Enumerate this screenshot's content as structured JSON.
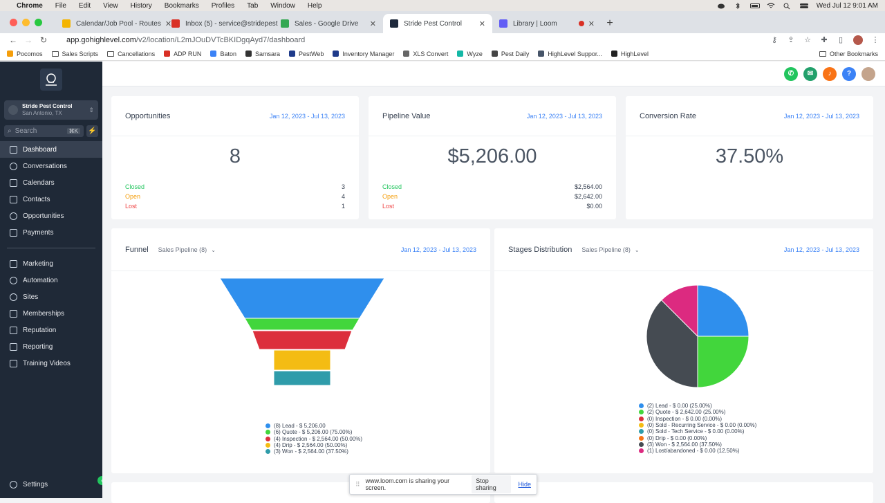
{
  "menubar": {
    "app": "Chrome",
    "items": [
      "File",
      "Edit",
      "View",
      "History",
      "Bookmarks",
      "Profiles",
      "Tab",
      "Window",
      "Help"
    ],
    "clock": "Wed Jul 12  9:01 AM"
  },
  "tabs": [
    {
      "title": "Calendar/Job Pool - Routes",
      "color": "#f4b400"
    },
    {
      "title": "Inbox (5) - service@stridepest",
      "color": "#d93025"
    },
    {
      "title": "Sales - Google Drive",
      "color": "#34a853"
    },
    {
      "title": "Stride Pest Control",
      "color": "#1e293b"
    },
    {
      "title": "Library | Loom",
      "color": "#625df5"
    }
  ],
  "url": {
    "host": "app.gohighlevel.com",
    "path": "/v2/location/L2mJOuDVTcBKIDgqAyd7/dashboard"
  },
  "bookmarks": [
    {
      "label": "Pocomos",
      "color": "#f59e0b"
    },
    {
      "label": "Sales Scripts",
      "color": "#777777"
    },
    {
      "label": "Cancellations",
      "color": "#777777"
    },
    {
      "label": "ADP RUN",
      "color": "#d93025"
    },
    {
      "label": "Baton",
      "color": "#3b82f6"
    },
    {
      "label": "Samsara",
      "color": "#333333"
    },
    {
      "label": "PestWeb",
      "color": "#1e3a8a"
    },
    {
      "label": "Inventory Manager",
      "color": "#1e3a8a"
    },
    {
      "label": "XLS Convert",
      "color": "#666666"
    },
    {
      "label": "Wyze",
      "color": "#14b8a6"
    },
    {
      "label": "Pest Daily",
      "color": "#444444"
    },
    {
      "label": "HighLevel Suppor...",
      "color": "#475569"
    },
    {
      "label": "HighLevel",
      "color": "#222222"
    }
  ],
  "other_bookmarks": "Other Bookmarks",
  "sidebar": {
    "account_name": "Stride Pest Control",
    "account_location": "San Antonio, TX",
    "search_placeholder": "Search",
    "search_shortcut": "⌘K",
    "main_items": [
      "Dashboard",
      "Conversations",
      "Calendars",
      "Contacts",
      "Opportunities",
      "Payments"
    ],
    "secondary_items": [
      "Marketing",
      "Automation",
      "Sites",
      "Memberships",
      "Reputation",
      "Reporting",
      "Training Videos"
    ],
    "settings": "Settings"
  },
  "topbar_colors": {
    "phone": "#22c55e",
    "announce": "#22a06b",
    "bell": "#f97316",
    "help": "#3b82f6"
  },
  "opportunities": {
    "title": "Opportunities",
    "date": "Jan 12, 2023 - Jul 13, 2023",
    "value": "8",
    "rows": [
      {
        "label": "Closed",
        "value": "3"
      },
      {
        "label": "Open",
        "value": "4"
      },
      {
        "label": "Lost",
        "value": "1"
      }
    ]
  },
  "pipeline": {
    "title": "Pipeline Value",
    "date": "Jan 12, 2023 - Jul 13, 2023",
    "value": "$5,206.00",
    "rows": [
      {
        "label": "Closed",
        "value": "$2,564.00"
      },
      {
        "label": "Open",
        "value": "$2,642.00"
      },
      {
        "label": "Lost",
        "value": "$0.00"
      }
    ]
  },
  "conversion": {
    "title": "Conversion Rate",
    "date": "Jan 12, 2023 - Jul 13, 2023",
    "value": "37.50%"
  },
  "funnel": {
    "title": "Funnel",
    "pipeline": "Sales Pipeline (8)",
    "date": "Jan 12, 2023 - Jul 13, 2023",
    "stages": [
      {
        "label": "(8) Lead - $ 5,206.00",
        "color": "#2f8fed"
      },
      {
        "label": "(6) Quote - $ 5,206.00 (75.00%)",
        "color": "#42d63c"
      },
      {
        "label": "(4) Inspection - $ 2,564.00 (50.00%)",
        "color": "#dc2f3c"
      },
      {
        "label": "(4) Drip - $ 2,564.00 (50.00%)",
        "color": "#f4bc13"
      },
      {
        "label": "(3) Won - $ 2,564.00 (37.50%)",
        "color": "#2f9caa"
      }
    ]
  },
  "stages": {
    "title": "Stages Distribution",
    "pipeline": "Sales Pipeline (8)",
    "date": "Jan 12, 2023 - Jul 13, 2023",
    "slices": [
      {
        "label": "(2) Lead - $ 0.00 (25.00%)",
        "color": "#2f8fed",
        "count": 2
      },
      {
        "label": "(2) Quote - $ 2,642.00 (25.00%)",
        "color": "#42d63c",
        "count": 2
      },
      {
        "label": "(0) Inspection - $ 0.00 (0.00%)",
        "color": "#dc2f3c",
        "count": 0
      },
      {
        "label": "(0) Sold - Recurring Service - $ 0.00 (0.00%)",
        "color": "#f4bc13",
        "count": 0
      },
      {
        "label": "(0) Sold - Tech Service - $ 0.00 (0.00%)",
        "color": "#2f9caa",
        "count": 0
      },
      {
        "label": "(0) Drip - $ 0.00 (0.00%)",
        "color": "#f97316",
        "count": 0
      },
      {
        "label": "(3) Won - $ 2,564.00 (37.50%)",
        "color": "#454b52",
        "count": 3
      },
      {
        "label": "(1) Lost/abandoned - $ 0.00 (12.50%)",
        "color": "#dc2a80",
        "count": 1
      }
    ]
  },
  "loom_bar": {
    "message": "www.loom.com is sharing your screen.",
    "stop": "Stop sharing",
    "hide": "Hide"
  }
}
